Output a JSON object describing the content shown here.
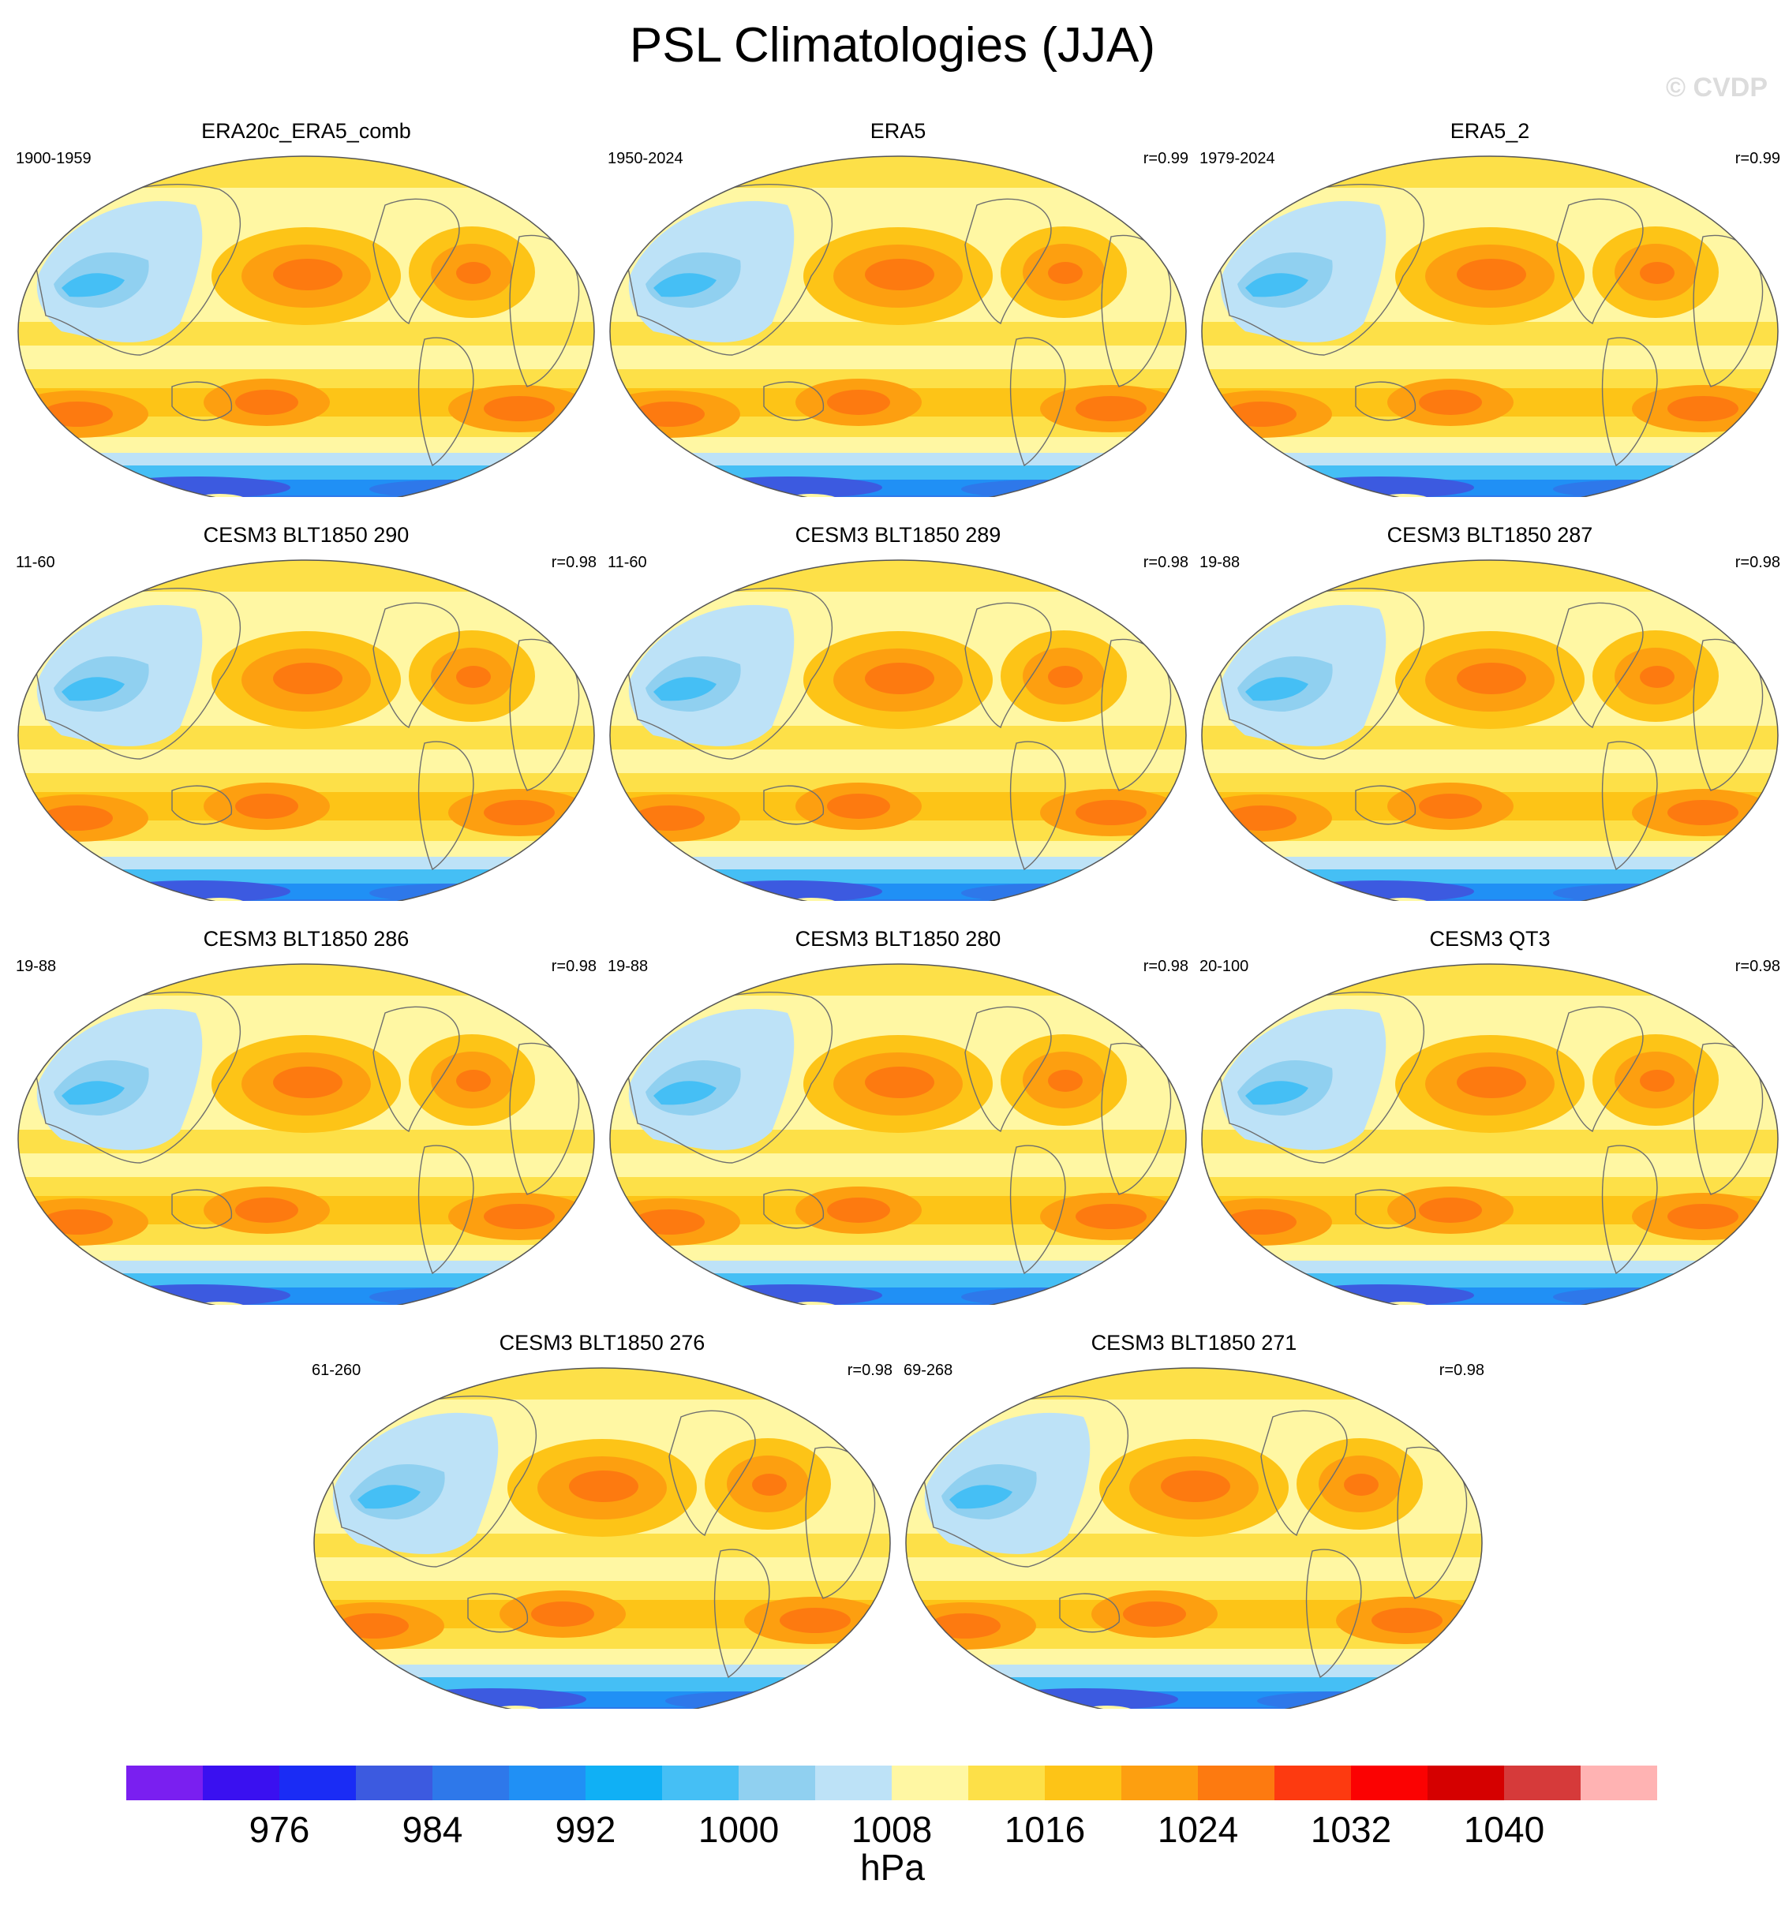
{
  "title": "PSL Climatologies (JJA)",
  "watermark": "© CVDP",
  "panels": [
    {
      "name": "ERA20c_ERA5_comb",
      "years": "1900-1959",
      "r": ""
    },
    {
      "name": "ERA5",
      "years": "1950-2024",
      "r": "r=0.99"
    },
    {
      "name": "ERA5_2",
      "years": "1979-2024",
      "r": "r=0.99"
    },
    {
      "name": "CESM3 BLT1850 290",
      "years": "11-60",
      "r": "r=0.98"
    },
    {
      "name": "CESM3 BLT1850 289",
      "years": "11-60",
      "r": "r=0.98"
    },
    {
      "name": "CESM3 BLT1850 287",
      "years": "19-88",
      "r": "r=0.98"
    },
    {
      "name": "CESM3 BLT1850 286",
      "years": "19-88",
      "r": "r=0.98"
    },
    {
      "name": "CESM3 BLT1850 280",
      "years": "19-88",
      "r": "r=0.98"
    },
    {
      "name": "CESM3 QT3",
      "years": "20-100",
      "r": "r=0.98"
    },
    {
      "name": "CESM3 BLT1850 276",
      "years": "61-260",
      "r": "r=0.98"
    },
    {
      "name": "CESM3 BLT1850 271",
      "years": "69-268",
      "r": "r=0.98"
    }
  ],
  "colorbar": {
    "colors": [
      "#7a1ff0",
      "#3a10f0",
      "#1a2cf5",
      "#3c5ae0",
      "#2e78ea",
      "#2090f5",
      "#10b0f5",
      "#45bff5",
      "#90d0f0",
      "#bde2f7",
      "#fff7a3",
      "#fde048",
      "#fdc417",
      "#fd9f10",
      "#fd7a10",
      "#fd3a10",
      "#fb0202",
      "#d50000",
      "#d63a3a",
      "#ffb3b3"
    ],
    "labels": [
      "976",
      "984",
      "992",
      "1000",
      "1008",
      "1016",
      "1024",
      "1032",
      "1040"
    ],
    "unit": "hPa"
  }
}
